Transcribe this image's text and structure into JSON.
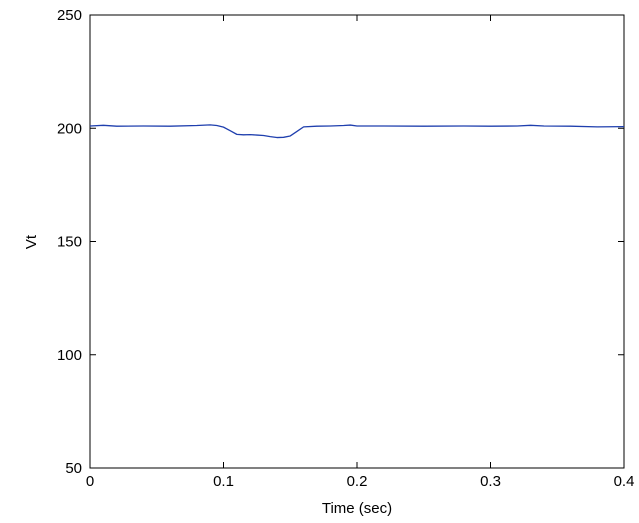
{
  "chart_data": {
    "type": "line",
    "title": "",
    "xlabel": "Time (sec)",
    "ylabel": "Vt",
    "xlim": [
      0,
      0.4
    ],
    "ylim": [
      50,
      250
    ],
    "xticks": [
      0,
      0.1,
      0.2,
      0.3,
      0.4
    ],
    "xtick_labels": [
      "0",
      "0.1",
      "0.2",
      "0.3",
      "0.4"
    ],
    "yticks": [
      50,
      100,
      150,
      200,
      250
    ],
    "ytick_labels": [
      "50",
      "100",
      "150",
      "200",
      "250"
    ],
    "grid": false,
    "legend": "none",
    "series": [
      {
        "color": "#1f3fae",
        "x": [
          0,
          0.01,
          0.02,
          0.04,
          0.06,
          0.08,
          0.09,
          0.095,
          0.1,
          0.105,
          0.11,
          0.115,
          0.12,
          0.125,
          0.13,
          0.135,
          0.14,
          0.145,
          0.15,
          0.155,
          0.16,
          0.17,
          0.18,
          0.19,
          0.195,
          0.2,
          0.22,
          0.25,
          0.28,
          0.3,
          0.32,
          0.33,
          0.34,
          0.36,
          0.38,
          0.4
        ],
        "y": [
          201,
          201.3,
          200.9,
          201,
          200.9,
          201.2,
          201.5,
          201.2,
          200.5,
          198.9,
          197.3,
          197.1,
          197.2,
          197,
          196.8,
          196.3,
          195.9,
          196,
          196.6,
          198.6,
          200.6,
          200.9,
          201,
          201.2,
          201.4,
          201,
          201,
          200.9,
          201,
          200.9,
          201,
          201.3,
          201,
          200.9,
          200.6,
          200.7
        ]
      }
    ]
  }
}
